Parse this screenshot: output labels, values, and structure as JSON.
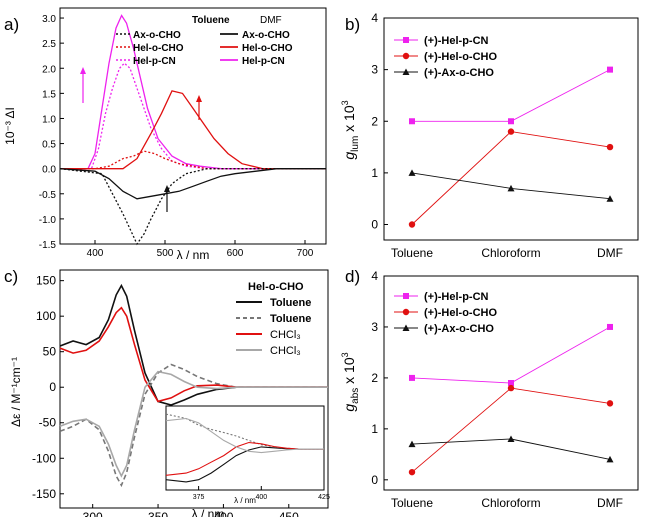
{
  "panels": {
    "a": {
      "label": "a)",
      "xlabel": "λ / nm",
      "ylabel": "10⁻³ ΔI",
      "legend_head_left": "Toluene",
      "legend_head_right": "DMF",
      "legend_left": [
        "Ax-o-CHO",
        "Hel-o-CHO",
        "Hel-p-CN"
      ],
      "legend_right": [
        "Ax-o-CHO",
        "Hel-o-CHO",
        "Hel-p-CN"
      ]
    },
    "b": {
      "label": "b)",
      "ylabel_main": "g",
      "ylabel_sub": "lum",
      "ylabel_tail": " x 10",
      "ylabel_exp": "3",
      "legend": [
        "(+)-Hel-p-CN",
        "(+)-Hel-o-CHO",
        "(+)-Ax-o-CHO"
      ]
    },
    "c": {
      "label": "c)",
      "xlabel": "λ / nm",
      "ylabel": "Δε / M⁻¹cm⁻¹",
      "legend_title": "Hel-o-CHO",
      "legend": [
        "Toluene",
        "Toluene",
        "CHCl₃",
        "CHCl₃"
      ],
      "inset_xlabel": "λ / nm"
    },
    "d": {
      "label": "d)",
      "ylabel_main": "g",
      "ylabel_sub": "abs",
      "ylabel_tail": " x 10",
      "ylabel_exp": "3",
      "legend": [
        "(+)-Hel-p-CN",
        "(+)-Hel-o-CHO",
        "(+)-Ax-o-CHO"
      ]
    }
  },
  "colors": {
    "magenta": "#ee22ee",
    "red": "#e01010",
    "black": "#111111",
    "gray": "#9a9a9a"
  },
  "chart_data": [
    {
      "panel": "a",
      "type": "line",
      "xlim": [
        350,
        730
      ],
      "ylim": [
        -1.5,
        3.2
      ],
      "xticks": [
        400,
        500,
        600,
        700
      ],
      "yticks": [
        -1.5,
        -1.0,
        -0.5,
        0.0,
        0.5,
        1.0,
        1.5,
        2.0,
        2.5,
        3.0
      ],
      "series": [
        {
          "name": "Hel-p-CN",
          "solvent": "DMF",
          "color": "#ee22ee",
          "dash": "solid",
          "x": [
            350,
            390,
            400,
            410,
            420,
            430,
            438,
            445,
            455,
            465,
            475,
            490,
            510,
            530,
            550,
            580,
            620,
            730
          ],
          "y": [
            0,
            0,
            0.3,
            1.2,
            2.1,
            2.8,
            3.05,
            2.9,
            2.4,
            1.8,
            1.2,
            0.6,
            0.25,
            0.1,
            0.05,
            0,
            0,
            0
          ]
        },
        {
          "name": "Hel-p-CN",
          "solvent": "Toluene",
          "color": "#ee22ee",
          "dash": "dot",
          "x": [
            350,
            395,
            405,
            415,
            425,
            435,
            442,
            450,
            460,
            470,
            480,
            495,
            510,
            530,
            560,
            600,
            730
          ],
          "y": [
            0,
            0,
            0.4,
            1.1,
            1.6,
            2.0,
            2.1,
            2.0,
            1.6,
            1.2,
            0.8,
            0.4,
            0.15,
            0.05,
            0,
            0,
            0
          ]
        },
        {
          "name": "Hel-o-CHO",
          "solvent": "DMF",
          "color": "#e01010",
          "dash": "solid",
          "x": [
            350,
            440,
            460,
            480,
            495,
            510,
            525,
            540,
            555,
            570,
            590,
            610,
            640,
            680,
            730
          ],
          "y": [
            0,
            0,
            0.2,
            0.7,
            1.1,
            1.55,
            1.5,
            1.2,
            0.9,
            0.6,
            0.3,
            0.1,
            0,
            0,
            0
          ]
        },
        {
          "name": "Hel-o-CHO",
          "solvent": "Toluene",
          "color": "#e01010",
          "dash": "dot",
          "x": [
            350,
            400,
            420,
            440,
            455,
            470,
            485,
            500,
            520,
            540,
            560,
            580,
            610,
            650,
            730
          ],
          "y": [
            0,
            0,
            0.05,
            0.2,
            0.25,
            0.35,
            0.3,
            0.2,
            0.1,
            0.05,
            0,
            0,
            0,
            0,
            0
          ]
        },
        {
          "name": "Ax-o-CHO",
          "solvent": "DMF",
          "color": "#111111",
          "dash": "solid",
          "x": [
            350,
            400,
            420,
            440,
            460,
            480,
            500,
            520,
            540,
            560,
            580,
            600,
            630,
            660,
            700,
            730
          ],
          "y": [
            0,
            -0.05,
            -0.2,
            -0.45,
            -0.6,
            -0.55,
            -0.5,
            -0.45,
            -0.35,
            -0.25,
            -0.15,
            -0.1,
            -0.05,
            0,
            0,
            0
          ]
        },
        {
          "name": "Ax-o-CHO",
          "solvent": "Toluene",
          "color": "#111111",
          "dash": "dot",
          "x": [
            350,
            410,
            425,
            440,
            450,
            460,
            470,
            480,
            495,
            510,
            530,
            560,
            600,
            730
          ],
          "y": [
            0,
            -0.1,
            -0.5,
            -0.9,
            -1.2,
            -1.5,
            -1.3,
            -1.0,
            -0.6,
            -0.3,
            -0.1,
            0,
            0,
            0
          ]
        }
      ]
    },
    {
      "panel": "b",
      "type": "line",
      "categories": [
        "Toluene",
        "Chloroform",
        "DMF"
      ],
      "ylim": [
        -0.3,
        4
      ],
      "yticks": [
        0,
        1,
        2,
        3,
        4
      ],
      "series": [
        {
          "name": "(+)-Hel-p-CN",
          "color": "#ee22ee",
          "marker": "square",
          "values": [
            2.0,
            2.0,
            3.0
          ]
        },
        {
          "name": "(+)-Hel-o-CHO",
          "color": "#e01010",
          "marker": "circle",
          "values": [
            0.0,
            1.8,
            1.5
          ]
        },
        {
          "name": "(+)-Ax-o-CHO",
          "color": "#111111",
          "marker": "triangle",
          "values": [
            1.0,
            0.7,
            0.5
          ]
        }
      ]
    },
    {
      "panel": "c",
      "type": "line",
      "xlim": [
        275,
        480
      ],
      "ylim": [
        -170,
        165
      ],
      "xticks": [
        300,
        350,
        400,
        450
      ],
      "yticks": [
        -150,
        -100,
        -50,
        0,
        50,
        100,
        150
      ],
      "series": [
        {
          "name": "Toluene",
          "color": "#111111",
          "dash": "solid",
          "x": [
            275,
            285,
            295,
            305,
            312,
            318,
            322,
            326,
            332,
            340,
            350,
            360,
            370,
            380,
            395,
            410,
            440,
            480
          ],
          "y": [
            58,
            65,
            60,
            70,
            95,
            130,
            143,
            128,
            80,
            20,
            -20,
            -25,
            -18,
            -10,
            -3,
            0,
            0,
            0
          ]
        },
        {
          "name": "Toluene",
          "color": "#777777",
          "dash": "dash",
          "x": [
            275,
            285,
            295,
            305,
            312,
            318,
            322,
            326,
            332,
            340,
            350,
            360,
            370,
            380,
            395,
            410,
            440,
            480
          ],
          "y": [
            -62,
            -55,
            -45,
            -60,
            -90,
            -125,
            -138,
            -120,
            -70,
            -10,
            20,
            32,
            25,
            15,
            5,
            0,
            0,
            0
          ]
        },
        {
          "name": "CHCl₃",
          "color": "#e01010",
          "dash": "solid",
          "x": [
            275,
            285,
            295,
            305,
            312,
            318,
            322,
            326,
            332,
            340,
            350,
            360,
            370,
            380,
            395,
            410,
            440,
            480
          ],
          "y": [
            55,
            48,
            52,
            65,
            85,
            105,
            112,
            100,
            60,
            10,
            -20,
            -15,
            -5,
            2,
            3,
            0,
            0,
            0
          ]
        },
        {
          "name": "CHCl₃",
          "color": "#a8a8a8",
          "dash": "solid",
          "x": [
            275,
            285,
            295,
            305,
            312,
            318,
            322,
            326,
            332,
            340,
            350,
            360,
            370,
            380,
            395,
            410,
            440,
            480
          ],
          "y": [
            -55,
            -48,
            -45,
            -55,
            -80,
            -110,
            -125,
            -110,
            -60,
            0,
            22,
            18,
            8,
            0,
            -2,
            0,
            0,
            0
          ]
        }
      ]
    },
    {
      "panel": "c-inset",
      "type": "line",
      "xlim": [
        362,
        425
      ],
      "xticks": [
        375,
        400,
        425
      ],
      "series": [
        {
          "name": "Toluene",
          "color": "#111111",
          "dash": "solid",
          "x": [
            362,
            370,
            375,
            380,
            385,
            390,
            395,
            400,
            405,
            410,
            415,
            425
          ],
          "y": [
            -0.7,
            -0.75,
            -0.7,
            -0.55,
            -0.35,
            -0.15,
            -0.02,
            0.05,
            0.03,
            0.01,
            0,
            0
          ]
        },
        {
          "name": "Toluene",
          "color": "#777777",
          "dash": "dot",
          "x": [
            362,
            370,
            375,
            380,
            385,
            390,
            395,
            400,
            405,
            410,
            415,
            425
          ],
          "y": [
            0.8,
            0.7,
            0.55,
            0.45,
            0.38,
            0.3,
            0.2,
            0.1,
            0.05,
            0.02,
            0,
            0
          ]
        },
        {
          "name": "CHCl₃",
          "color": "#e01010",
          "dash": "solid",
          "x": [
            362,
            370,
            375,
            380,
            385,
            390,
            395,
            400,
            405,
            410,
            415,
            425
          ],
          "y": [
            -0.6,
            -0.55,
            -0.45,
            -0.3,
            -0.15,
            0.05,
            0.15,
            0.12,
            0.06,
            0.02,
            0,
            0
          ]
        },
        {
          "name": "CHCl₃",
          "color": "#a8a8a8",
          "dash": "solid",
          "x": [
            362,
            370,
            375,
            380,
            385,
            390,
            395,
            400,
            405,
            410,
            415,
            425
          ],
          "y": [
            0.65,
            0.7,
            0.6,
            0.4,
            0.2,
            0.05,
            -0.05,
            -0.08,
            -0.05,
            -0.02,
            0,
            0
          ]
        }
      ]
    },
    {
      "panel": "d",
      "type": "line",
      "categories": [
        "Toluene",
        "Chloroform",
        "DMF"
      ],
      "ylim": [
        -0.2,
        4
      ],
      "yticks": [
        0,
        1,
        2,
        3,
        4
      ],
      "series": [
        {
          "name": "(+)-Hel-p-CN",
          "color": "#ee22ee",
          "marker": "square",
          "values": [
            2.0,
            1.9,
            3.0
          ]
        },
        {
          "name": "(+)-Hel-o-CHO",
          "color": "#e01010",
          "marker": "circle",
          "values": [
            0.15,
            1.8,
            1.5
          ]
        },
        {
          "name": "(+)-Ax-o-CHO",
          "color": "#111111",
          "marker": "triangle",
          "values": [
            0.7,
            0.8,
            0.4
          ]
        }
      ]
    }
  ]
}
